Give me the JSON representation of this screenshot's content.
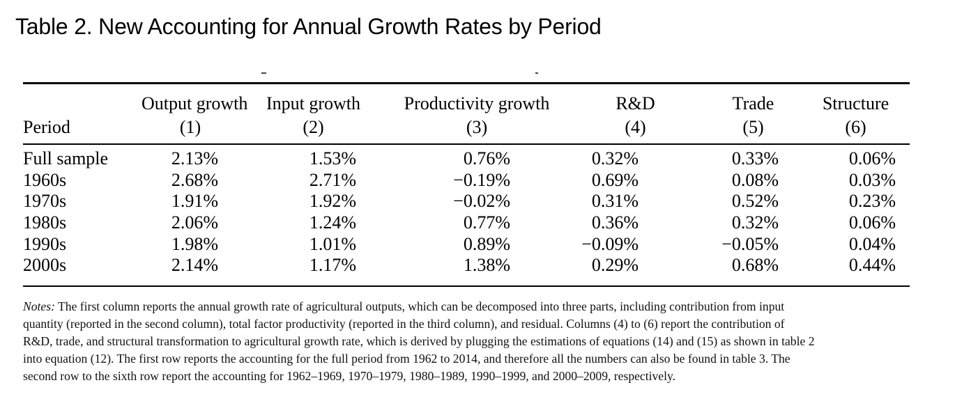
{
  "title": "Table 2. New Accounting for Annual Growth Rates by Period",
  "table": {
    "period_header": "Period",
    "columns": [
      {
        "label": "Output growth",
        "num": "(1)"
      },
      {
        "label": "Input growth",
        "num": "(2)"
      },
      {
        "label": "Productivity growth",
        "num": "(3)"
      },
      {
        "label": "R&D",
        "num": "(4)"
      },
      {
        "label": "Trade",
        "num": "(5)"
      },
      {
        "label": "Structure",
        "num": "(6)"
      }
    ],
    "rows": [
      {
        "period": "Full sample",
        "values": [
          "2.13%",
          "1.53%",
          "0.76%",
          "0.32%",
          "0.33%",
          "0.06%"
        ]
      },
      {
        "period": "1960s",
        "values": [
          "2.68%",
          "2.71%",
          "−0.19%",
          "0.69%",
          "0.08%",
          "0.03%"
        ]
      },
      {
        "period": "1970s",
        "values": [
          "1.91%",
          "1.92%",
          "−0.02%",
          "0.31%",
          "0.52%",
          "0.23%"
        ]
      },
      {
        "period": "1980s",
        "values": [
          "2.06%",
          "1.24%",
          "0.77%",
          "0.36%",
          "0.32%",
          "0.06%"
        ]
      },
      {
        "period": "1990s",
        "values": [
          "1.98%",
          "1.01%",
          "0.89%",
          "−0.09%",
          "−0.05%",
          "0.04%"
        ]
      },
      {
        "period": "2000s",
        "values": [
          "2.14%",
          "1.17%",
          "1.38%",
          "0.29%",
          "0.68%",
          "0.44%"
        ]
      }
    ]
  },
  "notes": {
    "label": "Notes:",
    "lines": [
      "The first column reports the annual growth rate of agricultural outputs, which can be decomposed into three parts, including contribution from input",
      "quantity (reported in the second column), total factor productivity (reported in the third column), and residual. Columns (4) to (6) report the contribution of",
      "R&D, trade, and structural transformation to agricultural growth rate, which is derived by plugging the estimations of equations (14) and (15) as shown in table 2",
      "into equation (12). The first row reports the accounting for the full period from 1962 to 2014, and therefore all the numbers can also be found in table 3. The",
      "second row to the sixth row report the accounting for 1962–1969, 1970–1979, 1980–1989, 1990–1999, and 2000–2009, respectively."
    ]
  }
}
